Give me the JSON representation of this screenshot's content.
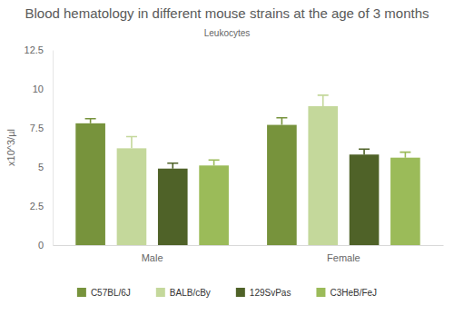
{
  "chart_data": {
    "type": "bar",
    "title": "Blood hematology in different mouse strains at the age of 3 months",
    "subtitle": "Leukocytes",
    "y_label": "x10^3/µl",
    "categories": [
      "Male",
      "Female"
    ],
    "series": [
      {
        "name": "C57BL/6J",
        "color": "#77933c",
        "values": [
          7.8,
          7.7
        ],
        "errors": [
          0.3,
          0.45
        ]
      },
      {
        "name": "BALB/cBy",
        "color": "#c4d89b",
        "values": [
          6.2,
          8.9
        ],
        "errors": [
          0.75,
          0.7
        ]
      },
      {
        "name": "129SvPas",
        "color": "#4f6228",
        "values": [
          4.9,
          5.8
        ],
        "errors": [
          0.35,
          0.35
        ]
      },
      {
        "name": "C3HeB/FeJ",
        "color": "#9bbb59",
        "values": [
          5.1,
          5.6
        ],
        "errors": [
          0.35,
          0.35
        ]
      }
    ],
    "ylim": [
      0,
      12.5
    ],
    "yticks": [
      0,
      2.5,
      5,
      7.5,
      10,
      12.5
    ],
    "grid": false,
    "legend": "bottom"
  }
}
